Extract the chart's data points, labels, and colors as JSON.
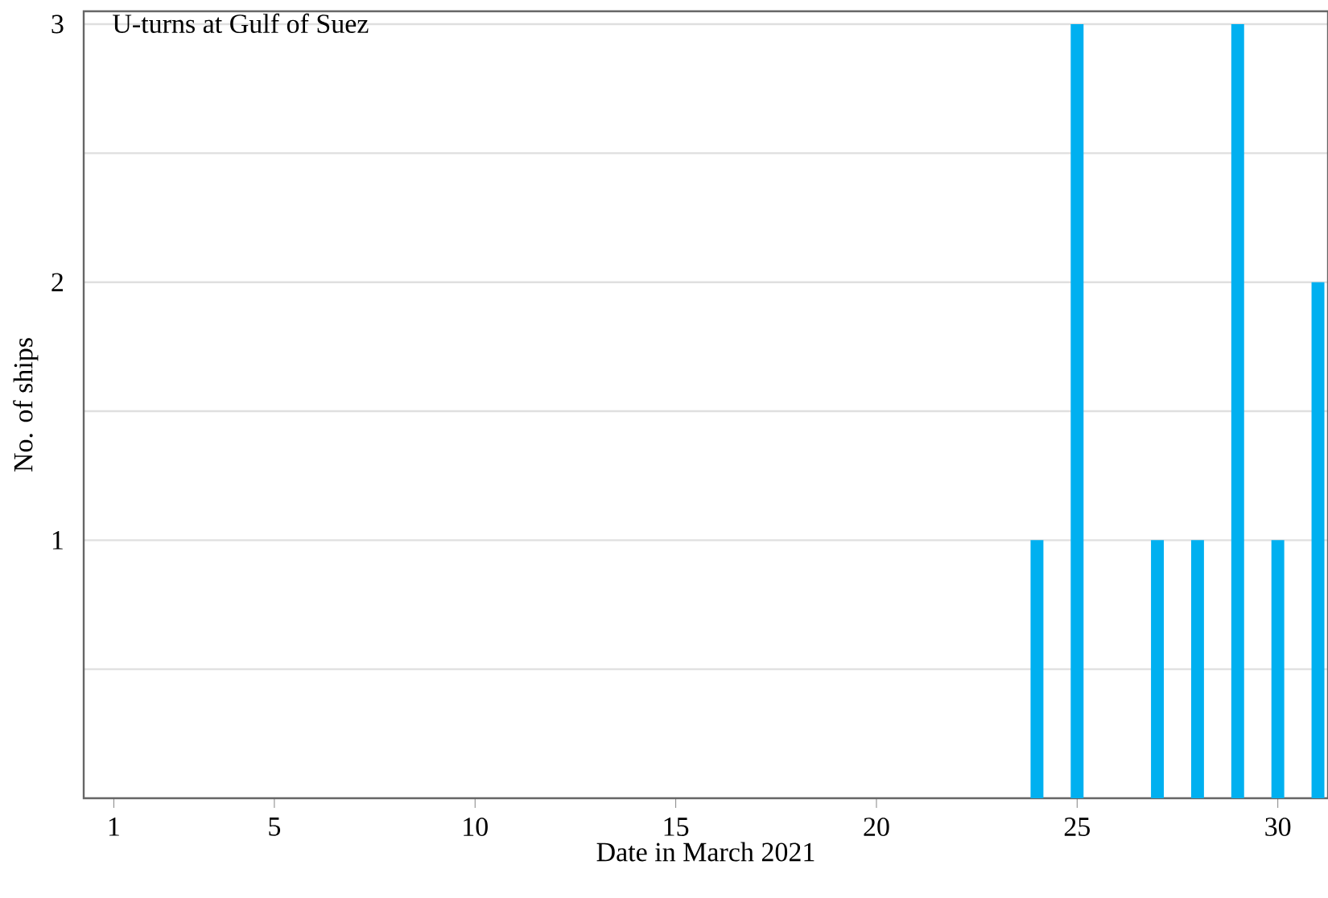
{
  "chart_data": {
    "type": "bar",
    "title": "U-turns at Gulf of Suez",
    "xlabel": "Date in March 2021",
    "ylabel": "No. of ships",
    "x": [
      24,
      25,
      27,
      28,
      29,
      30,
      31
    ],
    "values": [
      1,
      3,
      1,
      1,
      3,
      1,
      2
    ],
    "color": "#00b0f0",
    "xlim": [
      0.25,
      31.25
    ],
    "ylim": [
      0,
      3.05
    ],
    "xticks": [
      1,
      5,
      10,
      15,
      20,
      25,
      30
    ],
    "yticks": [
      {
        "value": 0.5,
        "label": null
      },
      1,
      {
        "value": 1.5,
        "label": null
      },
      2,
      {
        "value": 2.5,
        "label": null
      },
      3
    ],
    "grid": "y"
  }
}
